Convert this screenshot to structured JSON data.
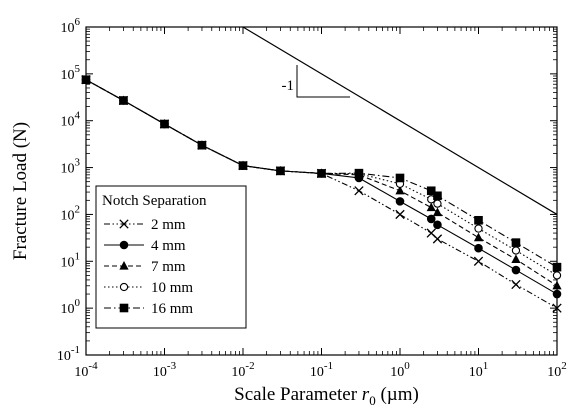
{
  "chart_data": {
    "type": "line",
    "xlabel_main": "Scale Parameter ",
    "xlabel_var": "r",
    "xlabel_sub": "0",
    "xlabel_unit": " (µm)",
    "ylabel": "Fracture Load (N)",
    "xscale": "log",
    "yscale": "log",
    "xlim": [
      0.0001,
      100
    ],
    "ylim": [
      0.1,
      1000000
    ],
    "x_ticks": [
      {
        "base": "10",
        "exp": "-4",
        "value": 0.0001
      },
      {
        "base": "10",
        "exp": "-3",
        "value": 0.001
      },
      {
        "base": "10",
        "exp": "-2",
        "value": 0.01
      },
      {
        "base": "10",
        "exp": "-1",
        "value": 0.1
      },
      {
        "base": "10",
        "exp": "0",
        "value": 1
      },
      {
        "base": "10",
        "exp": "1",
        "value": 10
      },
      {
        "base": "10",
        "exp": "2",
        "value": 100
      }
    ],
    "y_ticks": [
      {
        "base": "10",
        "exp": "-1",
        "value": 0.1
      },
      {
        "base": "10",
        "exp": "0",
        "value": 1
      },
      {
        "base": "10",
        "exp": "1",
        "value": 10
      },
      {
        "base": "10",
        "exp": "2",
        "value": 100
      },
      {
        "base": "10",
        "exp": "3",
        "value": 1000
      },
      {
        "base": "10",
        "exp": "4",
        "value": 10000
      },
      {
        "base": "10",
        "exp": "5",
        "value": 100000
      },
      {
        "base": "10",
        "exp": "6",
        "value": 1000000
      }
    ],
    "grid": false,
    "legend_title": "Notch Separation",
    "legend_position": "bottom-left",
    "series": [
      {
        "name": "2 mm",
        "marker": "x",
        "dash": "dash-dot-dot",
        "x": [
          0.0001,
          0.0003,
          0.001,
          0.003,
          0.01,
          0.03,
          0.1,
          0.3,
          1,
          2.5,
          3,
          10,
          30,
          100
        ],
        "y": [
          75000,
          27000,
          8500,
          3000,
          1100,
          850,
          750,
          320,
          100,
          40,
          30,
          10,
          3.2,
          1
        ]
      },
      {
        "name": "4 mm",
        "marker": "circle-filled",
        "dash": "solid",
        "x": [
          0.0001,
          0.0003,
          0.001,
          0.003,
          0.01,
          0.03,
          0.1,
          0.3,
          1,
          2.5,
          3,
          10,
          30,
          100
        ],
        "y": [
          75000,
          27000,
          8500,
          3000,
          1100,
          850,
          750,
          600,
          190,
          80,
          60,
          19,
          6.5,
          2
        ]
      },
      {
        "name": "7 mm",
        "marker": "triangle-filled",
        "dash": "dashed",
        "x": [
          0.0001,
          0.0003,
          0.001,
          0.003,
          0.01,
          0.03,
          0.1,
          0.3,
          1,
          2.5,
          3,
          10,
          30,
          100
        ],
        "y": [
          75000,
          27000,
          8500,
          3000,
          1100,
          850,
          750,
          700,
          320,
          140,
          110,
          32,
          11,
          3
        ]
      },
      {
        "name": "10 mm",
        "marker": "circle-open",
        "dash": "dotted",
        "x": [
          0.0001,
          0.0003,
          0.001,
          0.003,
          0.01,
          0.03,
          0.1,
          0.3,
          1,
          2.5,
          3,
          10,
          30,
          100
        ],
        "y": [
          75000,
          27000,
          8500,
          3000,
          1100,
          850,
          750,
          740,
          450,
          210,
          170,
          50,
          17,
          5
        ]
      },
      {
        "name": "16 mm",
        "marker": "square-filled",
        "dash": "dash-dot",
        "x": [
          0.0001,
          0.0003,
          0.001,
          0.003,
          0.01,
          0.03,
          0.1,
          0.3,
          1,
          2.5,
          3,
          10,
          30,
          100
        ],
        "y": [
          75000,
          27000,
          8500,
          3000,
          1100,
          850,
          750,
          760,
          600,
          320,
          250,
          75,
          25,
          7.5
        ]
      }
    ],
    "reference_line": {
      "x": [
        0.01,
        100
      ],
      "y": [
        1000000,
        100
      ]
    },
    "slope_annotation": {
      "label": "-1"
    },
    "colors": {
      "line": "#000000",
      "background": "#ffffff"
    }
  }
}
